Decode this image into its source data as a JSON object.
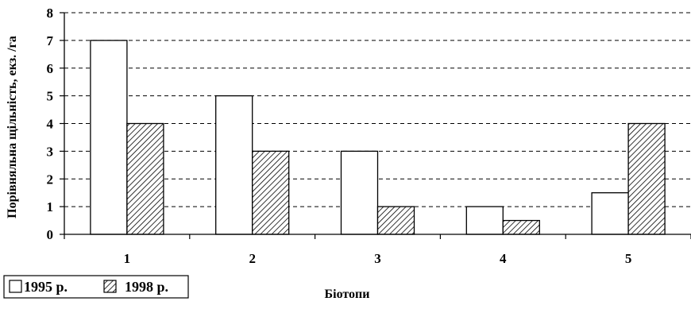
{
  "chart_data": {
    "type": "bar",
    "categories": [
      "1",
      "2",
      "3",
      "4",
      "5"
    ],
    "series": [
      {
        "name": "1995 р.",
        "values": [
          7,
          5,
          3,
          1,
          1.5
        ],
        "fill": "#ffffff"
      },
      {
        "name": "1998 р.",
        "values": [
          4,
          3,
          1,
          0.5,
          4
        ],
        "fill": "hatched"
      }
    ],
    "xlabel": "Біотопи",
    "ylabel": "Порівняльна щільність, екз. /га",
    "ylim": [
      0,
      8
    ],
    "yticks": [
      "0",
      "1",
      "2",
      "3",
      "4",
      "5",
      "6",
      "7",
      "8"
    ],
    "grid": "dashed horizontal",
    "legend_position": "bottom-left",
    "colors": {
      "bar_outline": "#000000",
      "hatch": "#000000",
      "background": "#ffffff"
    }
  }
}
